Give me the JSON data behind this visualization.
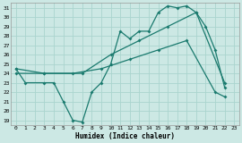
{
  "xlabel": "Humidex (Indice chaleur)",
  "bg_color": "#cce8e4",
  "grid_color": "#aad4ce",
  "line_color": "#1a7a6e",
  "xlim": [
    -0.5,
    23.5
  ],
  "ylim": [
    18.5,
    31.5
  ],
  "xticks": [
    0,
    1,
    2,
    3,
    4,
    5,
    6,
    7,
    8,
    9,
    10,
    11,
    12,
    13,
    14,
    15,
    16,
    17,
    18,
    19,
    20,
    21,
    22,
    23
  ],
  "yticks": [
    19,
    20,
    21,
    22,
    23,
    24,
    25,
    26,
    27,
    28,
    29,
    30,
    31
  ],
  "line1_x": [
    0,
    1,
    3,
    4,
    5,
    6,
    7,
    8,
    9,
    10,
    11,
    12,
    13,
    14,
    15,
    16,
    17,
    18,
    19,
    20,
    21,
    22
  ],
  "line1_y": [
    24.5,
    23.0,
    23.0,
    23.0,
    21.0,
    19.0,
    18.8,
    22.0,
    23.0,
    25.0,
    28.5,
    27.7,
    28.5,
    28.5,
    30.5,
    31.2,
    31.0,
    31.2,
    30.5,
    29.0,
    26.5,
    22.5
  ],
  "line2_x": [
    0,
    3,
    7,
    10,
    13,
    16,
    19,
    22
  ],
  "line2_y": [
    24.5,
    24.0,
    24.0,
    26.0,
    27.5,
    29.0,
    30.5,
    23.0
  ],
  "line3_x": [
    0,
    3,
    6,
    9,
    12,
    15,
    18,
    21,
    22
  ],
  "line3_y": [
    24.0,
    24.0,
    24.0,
    24.5,
    25.5,
    26.5,
    27.5,
    22.0,
    21.5
  ]
}
